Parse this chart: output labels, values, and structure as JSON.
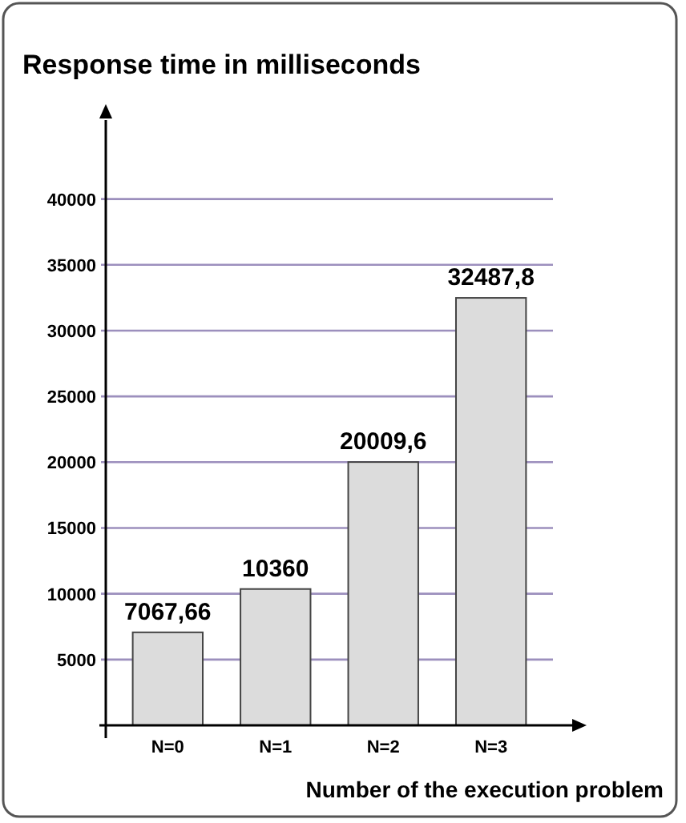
{
  "chart_data": {
    "type": "bar",
    "ylabel": "Response time in milliseconds",
    "xlabel": "Number of the execution problem",
    "categories": [
      "N=0",
      "N=1",
      "N=2",
      "N=3"
    ],
    "values": [
      7067.66,
      10360,
      20009.6,
      32487.8
    ],
    "value_labels": [
      "7067,66",
      "10360",
      "20009,6",
      "32487,8"
    ],
    "color": "#dcdcdc",
    "ylim": [
      0,
      46000
    ],
    "yticks": [
      5000,
      10000,
      15000,
      20000,
      25000,
      30000,
      35000,
      40000
    ],
    "grid": "y"
  }
}
